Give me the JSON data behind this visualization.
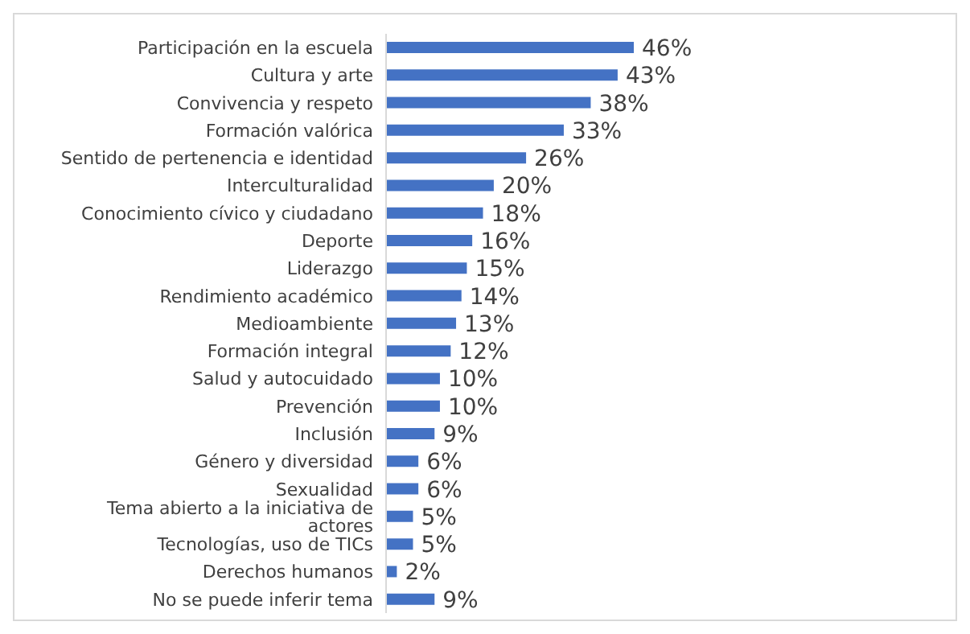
{
  "chart_data": {
    "type": "bar",
    "orientation": "horizontal",
    "color": "#4472c4",
    "categories": [
      "Participación en la escuela",
      "Cultura y arte",
      "Convivencia y respeto",
      "Formación valórica",
      "Sentido de pertenencia e identidad",
      "Interculturalidad",
      "Conocimiento cívico y ciudadano",
      "Deporte",
      "Liderazgo",
      "Rendimiento académico",
      "Medioambiente",
      "Formación integral",
      "Salud y autocuidado",
      "Prevención",
      "Inclusión",
      "Género y diversidad",
      "Sexualidad",
      "Tema abierto a la iniciativa de actores",
      "Tecnologías, uso de TICs",
      "Derechos humanos",
      "No se puede inferir tema"
    ],
    "values": [
      46,
      43,
      38,
      33,
      26,
      20,
      18,
      16,
      15,
      14,
      13,
      12,
      10,
      10,
      9,
      6,
      6,
      5,
      5,
      2,
      9
    ],
    "value_labels": [
      "46%",
      "43%",
      "38%",
      "33%",
      "26%",
      "20%",
      "18%",
      "16%",
      "15%",
      "14%",
      "13%",
      "12%",
      "10%",
      "10%",
      "9%",
      "6%",
      "6%",
      "5%",
      "5%",
      "2%",
      "9%"
    ]
  }
}
